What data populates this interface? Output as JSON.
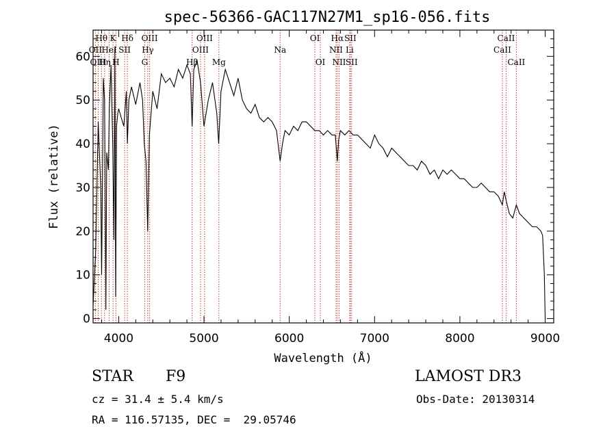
{
  "chart_data": {
    "type": "line",
    "title": "spec-56366-GAC117N27M1_sp16-056.fits",
    "xlabel": "Wavelength (Å)",
    "ylabel": "Flux (relative)",
    "xlim": [
      3700,
      9100
    ],
    "ylim": [
      -1,
      66
    ],
    "xticks": [
      4000,
      5000,
      6000,
      7000,
      8000,
      9000
    ],
    "yticks": [
      0,
      10,
      20,
      30,
      40,
      50,
      60
    ],
    "grid": false,
    "series": [
      {
        "name": "spectrum",
        "x": [
          3700,
          3730,
          3760,
          3790,
          3800,
          3820,
          3835,
          3850,
          3860,
          3880,
          3890,
          3910,
          3930,
          3945,
          3955,
          3965,
          3975,
          3990,
          4000,
          4030,
          4060,
          4090,
          4102,
          4120,
          4150,
          4200,
          4250,
          4280,
          4300,
          4320,
          4340,
          4360,
          4400,
          4450,
          4500,
          4550,
          4600,
          4650,
          4700,
          4750,
          4800,
          4840,
          4861,
          4880,
          4920,
          4960,
          5000,
          5050,
          5100,
          5150,
          5172,
          5200,
          5250,
          5300,
          5350,
          5400,
          5450,
          5500,
          5550,
          5600,
          5650,
          5700,
          5750,
          5800,
          5850,
          5893,
          5920,
          5950,
          6000,
          6050,
          6100,
          6150,
          6200,
          6250,
          6300,
          6350,
          6400,
          6450,
          6500,
          6540,
          6563,
          6580,
          6600,
          6650,
          6700,
          6750,
          6800,
          6850,
          6900,
          6950,
          7000,
          7050,
          7100,
          7150,
          7200,
          7250,
          7300,
          7350,
          7400,
          7450,
          7500,
          7550,
          7600,
          7650,
          7700,
          7750,
          7800,
          7850,
          7900,
          7950,
          8000,
          8050,
          8100,
          8150,
          8200,
          8250,
          8300,
          8350,
          8400,
          8450,
          8498,
          8520,
          8542,
          8580,
          8620,
          8662,
          8700,
          8750,
          8800,
          8850,
          8900,
          8950,
          8970,
          8990,
          9000
        ],
        "y": [
          3,
          15,
          45,
          30,
          10,
          55,
          50,
          2,
          38,
          34,
          48,
          58,
          40,
          18,
          62,
          5,
          44,
          47,
          48,
          46,
          44,
          52,
          40,
          50,
          53,
          49,
          54,
          50,
          40,
          36,
          20,
          42,
          52,
          48,
          56,
          54,
          55,
          53,
          57,
          55,
          58,
          56,
          44,
          57,
          59,
          54,
          44,
          50,
          54,
          47,
          40,
          52,
          57,
          54,
          51,
          55,
          50,
          48,
          47,
          49,
          46,
          45,
          46,
          45,
          43,
          36,
          40,
          43,
          42,
          44,
          43,
          45,
          45,
          44,
          43,
          43,
          42,
          43,
          42,
          42,
          36,
          41,
          43,
          42,
          43,
          42,
          42,
          41,
          40,
          39,
          42,
          40,
          39,
          37,
          39,
          38,
          37,
          36,
          35,
          35,
          34,
          36,
          35,
          33,
          34,
          32,
          34,
          33,
          34,
          33,
          32,
          32,
          31,
          30,
          30,
          31,
          30,
          29,
          29,
          28,
          26,
          29,
          27,
          24,
          23,
          26,
          24,
          23,
          22,
          21,
          21,
          20,
          19,
          10,
          0
        ]
      }
    ],
    "spectral_lines": [
      {
        "label": "Hθ",
        "wavelength": 3798,
        "row": 1
      },
      {
        "label": "OII",
        "wavelength": 3727,
        "row": 2
      },
      {
        "label": "OIII",
        "wavelength": 3760,
        "row": 3
      },
      {
        "label": "K",
        "wavelength": 3934,
        "row": 1
      },
      {
        "label": "HeI",
        "wavelength": 3889,
        "row": 2
      },
      {
        "label": "Hη",
        "wavelength": 3835,
        "row": 3
      },
      {
        "label": "SII",
        "wavelength": 4070,
        "row": 2
      },
      {
        "label": "H",
        "wavelength": 3968,
        "row": 3
      },
      {
        "label": "Hδ",
        "wavelength": 4102,
        "row": 1
      },
      {
        "label": "OIII",
        "wavelength": 4363,
        "row": 1
      },
      {
        "label": "Hγ",
        "wavelength": 4341,
        "row": 2
      },
      {
        "label": "G",
        "wavelength": 4305,
        "row": 3
      },
      {
        "label": "OIII",
        "wavelength": 5007,
        "row": 1
      },
      {
        "label": "OIII",
        "wavelength": 4959,
        "row": 2
      },
      {
        "label": "Hβ",
        "wavelength": 4861,
        "row": 3
      },
      {
        "label": "Mg",
        "wavelength": 5175,
        "row": 3
      },
      {
        "label": "Na",
        "wavelength": 5893,
        "row": 2
      },
      {
        "label": "OI",
        "wavelength": 6300,
        "row": 1
      },
      {
        "label": "OI",
        "wavelength": 6364,
        "row": 3
      },
      {
        "label": "Hα",
        "wavelength": 6563,
        "row": 1
      },
      {
        "label": "SII",
        "wavelength": 6716,
        "row": 1
      },
      {
        "label": "NII",
        "wavelength": 6548,
        "row": 2
      },
      {
        "label": "Li",
        "wavelength": 6708,
        "row": 2
      },
      {
        "label": "NII",
        "wavelength": 6584,
        "row": 3
      },
      {
        "label": "SII",
        "wavelength": 6731,
        "row": 3
      },
      {
        "label": "CaII",
        "wavelength": 8542,
        "row": 1
      },
      {
        "label": "CaII",
        "wavelength": 8498,
        "row": 2
      },
      {
        "label": "CaII",
        "wavelength": 8662,
        "row": 3
      }
    ],
    "line_color": "#000000",
    "marker_color": "#c0392b"
  },
  "info": {
    "object_class": "STAR",
    "subclass": "F9",
    "survey": "LAMOST DR3",
    "cz": "cz = 31.4 ± 5.4 km/s",
    "obs_date": "Obs-Date: 20130314",
    "coords": "RA = 116.57135, DEC =  29.05746"
  }
}
